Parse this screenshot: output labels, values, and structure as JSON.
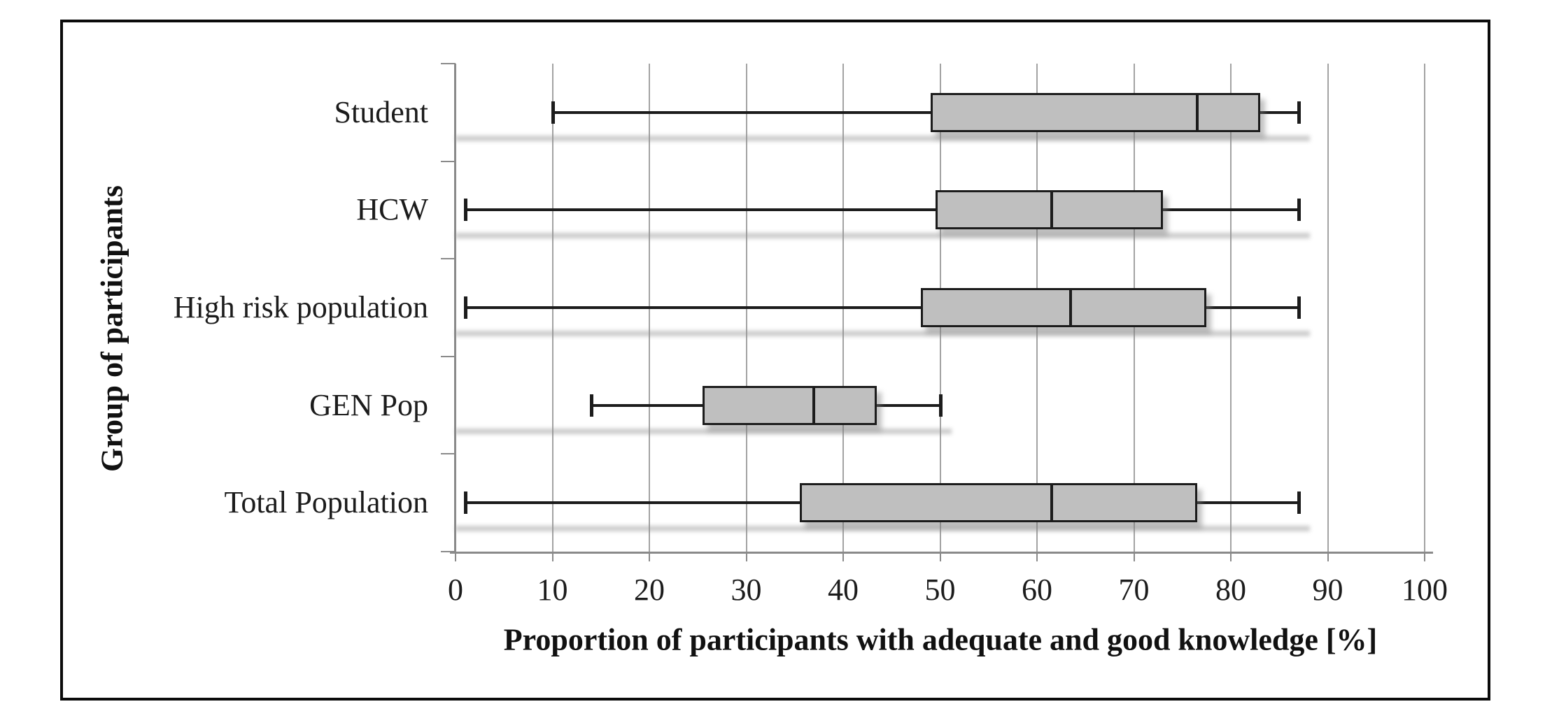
{
  "figure": {
    "kind": "boxplot-figure",
    "background": "#ffffff"
  },
  "chart_data": {
    "type": "boxplot",
    "orientation": "horizontal",
    "title": "",
    "xlabel": "Proportion of participants with adequate and good knowledge [%]",
    "ylabel": "Group of participants",
    "xlim": [
      0,
      100
    ],
    "xticks": [
      0,
      10,
      20,
      30,
      40,
      50,
      60,
      70,
      80,
      90,
      100
    ],
    "grid": "vertical gridlines every 10 units",
    "legend": "none",
    "categories_top_to_bottom": [
      "Student",
      "HCW",
      "High risk population",
      "GEN Pop",
      "Total Population"
    ],
    "series": [
      {
        "label": "Student",
        "whisker_low": 10,
        "q1": 49,
        "median": 76.5,
        "q3": 83,
        "whisker_high": 87
      },
      {
        "label": "HCW",
        "whisker_low": 1,
        "q1": 49.5,
        "median": 61.5,
        "q3": 73,
        "whisker_high": 87
      },
      {
        "label": "High risk population",
        "whisker_low": 1,
        "q1": 48,
        "median": 63.5,
        "q3": 77.5,
        "whisker_high": 87
      },
      {
        "label": "GEN Pop",
        "whisker_low": 14,
        "q1": 25.5,
        "median": 37,
        "q3": 43.5,
        "whisker_high": 50
      },
      {
        "label": "Total Population",
        "whisker_low": 1,
        "q1": 35.5,
        "median": 61.5,
        "q3": 76.5,
        "whisker_high": 87
      }
    ]
  },
  "colors": {
    "box_fill": "#bfbfbf",
    "box_border": "#1c1c1c",
    "whisker": "#1c1c1c",
    "gridline": "#a3a3a3",
    "axis_line": "#8a8a8a",
    "frame_border": "#0b0b0b",
    "shadow": "#8f8f8f",
    "text": "#1c1c1c"
  }
}
